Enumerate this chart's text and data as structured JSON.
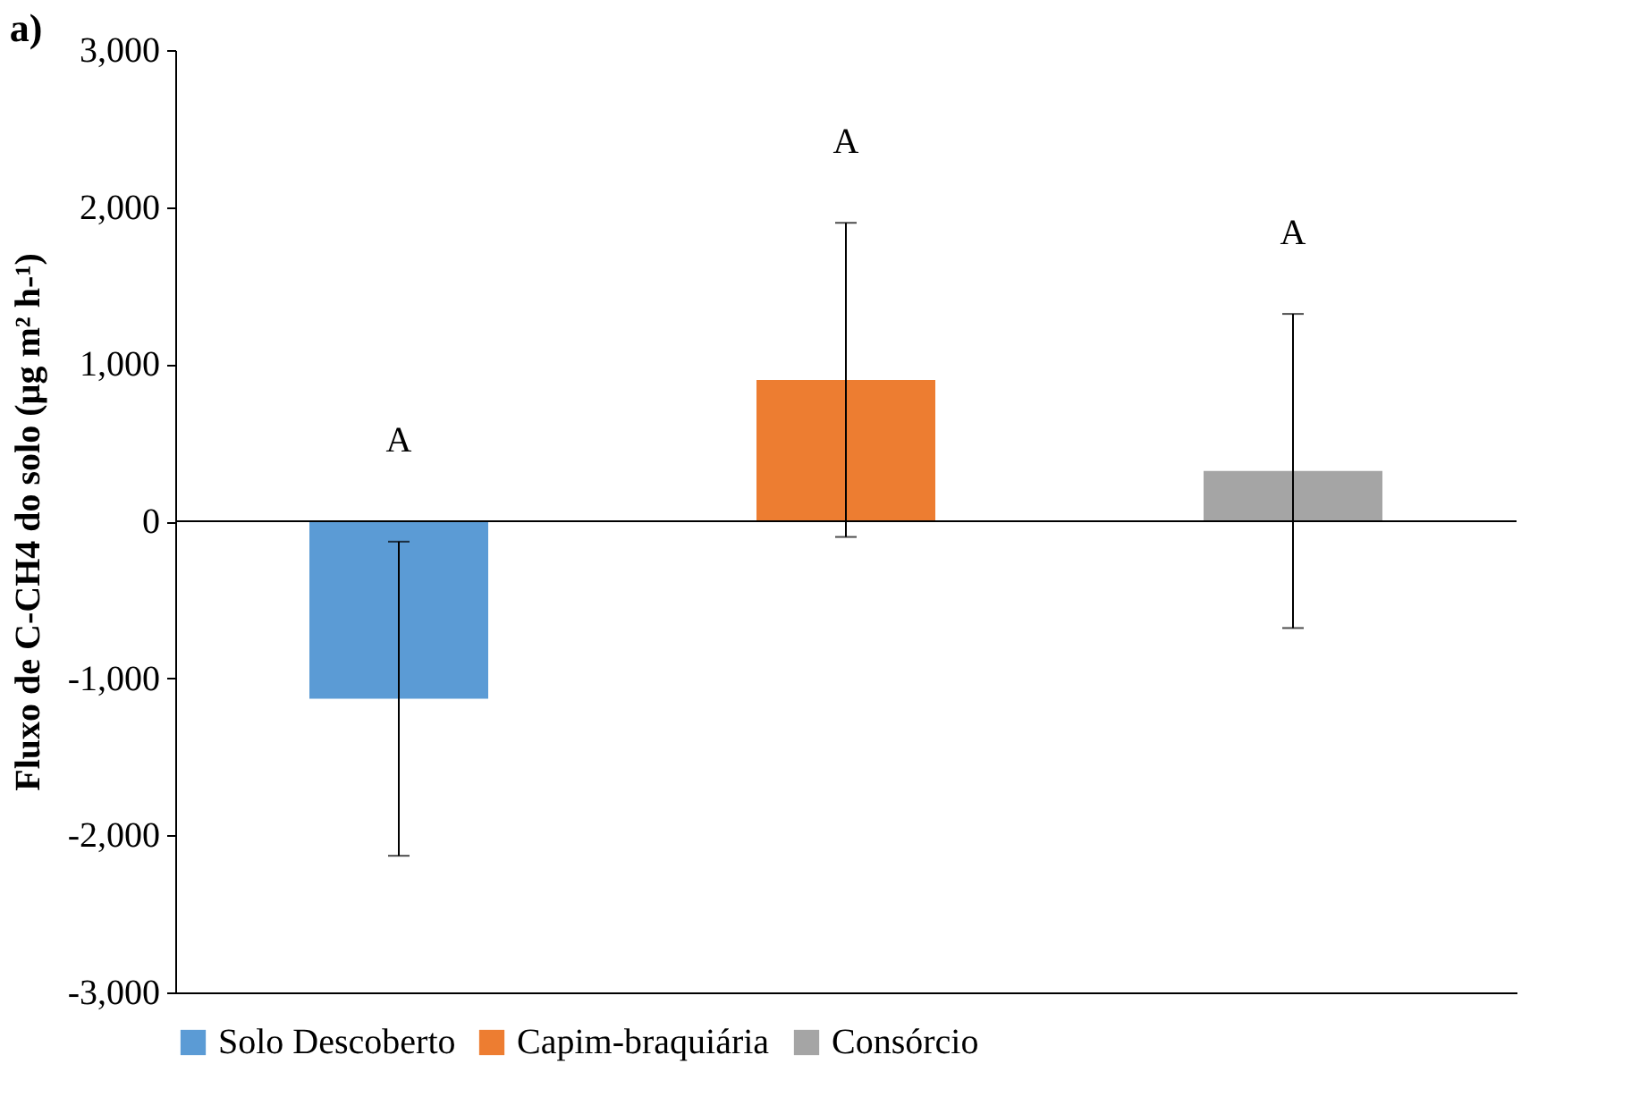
{
  "chart_data": {
    "type": "bar",
    "title": "a)",
    "ylabel": "Fluxo de C-CH4 do solo (µg m² h-¹)",
    "categories": [
      null,
      null,
      null
    ],
    "series": [
      {
        "name": "Solo Descoberto",
        "color": "#5b9bd5",
        "values": [
          -1130,
          null,
          null
        ],
        "errors": [
          1000,
          null,
          null
        ]
      },
      {
        "name": "Capim-braquiária",
        "color": "#ed7d31",
        "values": [
          null,
          900,
          null
        ],
        "errors": [
          null,
          1000,
          null
        ]
      },
      {
        "name": "Consórcio",
        "color": "#a5a5a5",
        "values": [
          null,
          null,
          320
        ],
        "errors": [
          null,
          null,
          1000
        ]
      }
    ],
    "ylim": [
      -3000,
      3000
    ],
    "yticks": [
      {
        "value": -3000,
        "label": "-3,000"
      },
      {
        "value": -2000,
        "label": "-2,000"
      },
      {
        "value": -1000,
        "label": "-1,000"
      },
      {
        "value": 0,
        "label": "0"
      },
      {
        "value": 1000,
        "label": "1,000"
      },
      {
        "value": 2000,
        "label": "2,000"
      },
      {
        "value": 3000,
        "label": "3,000"
      }
    ],
    "annotations": [
      "A",
      "A",
      "A"
    ],
    "ref_lines": [
      {
        "axis": "y",
        "value": 0
      }
    ],
    "grid": false,
    "legend": "bottom",
    "tick_labels": "y"
  }
}
